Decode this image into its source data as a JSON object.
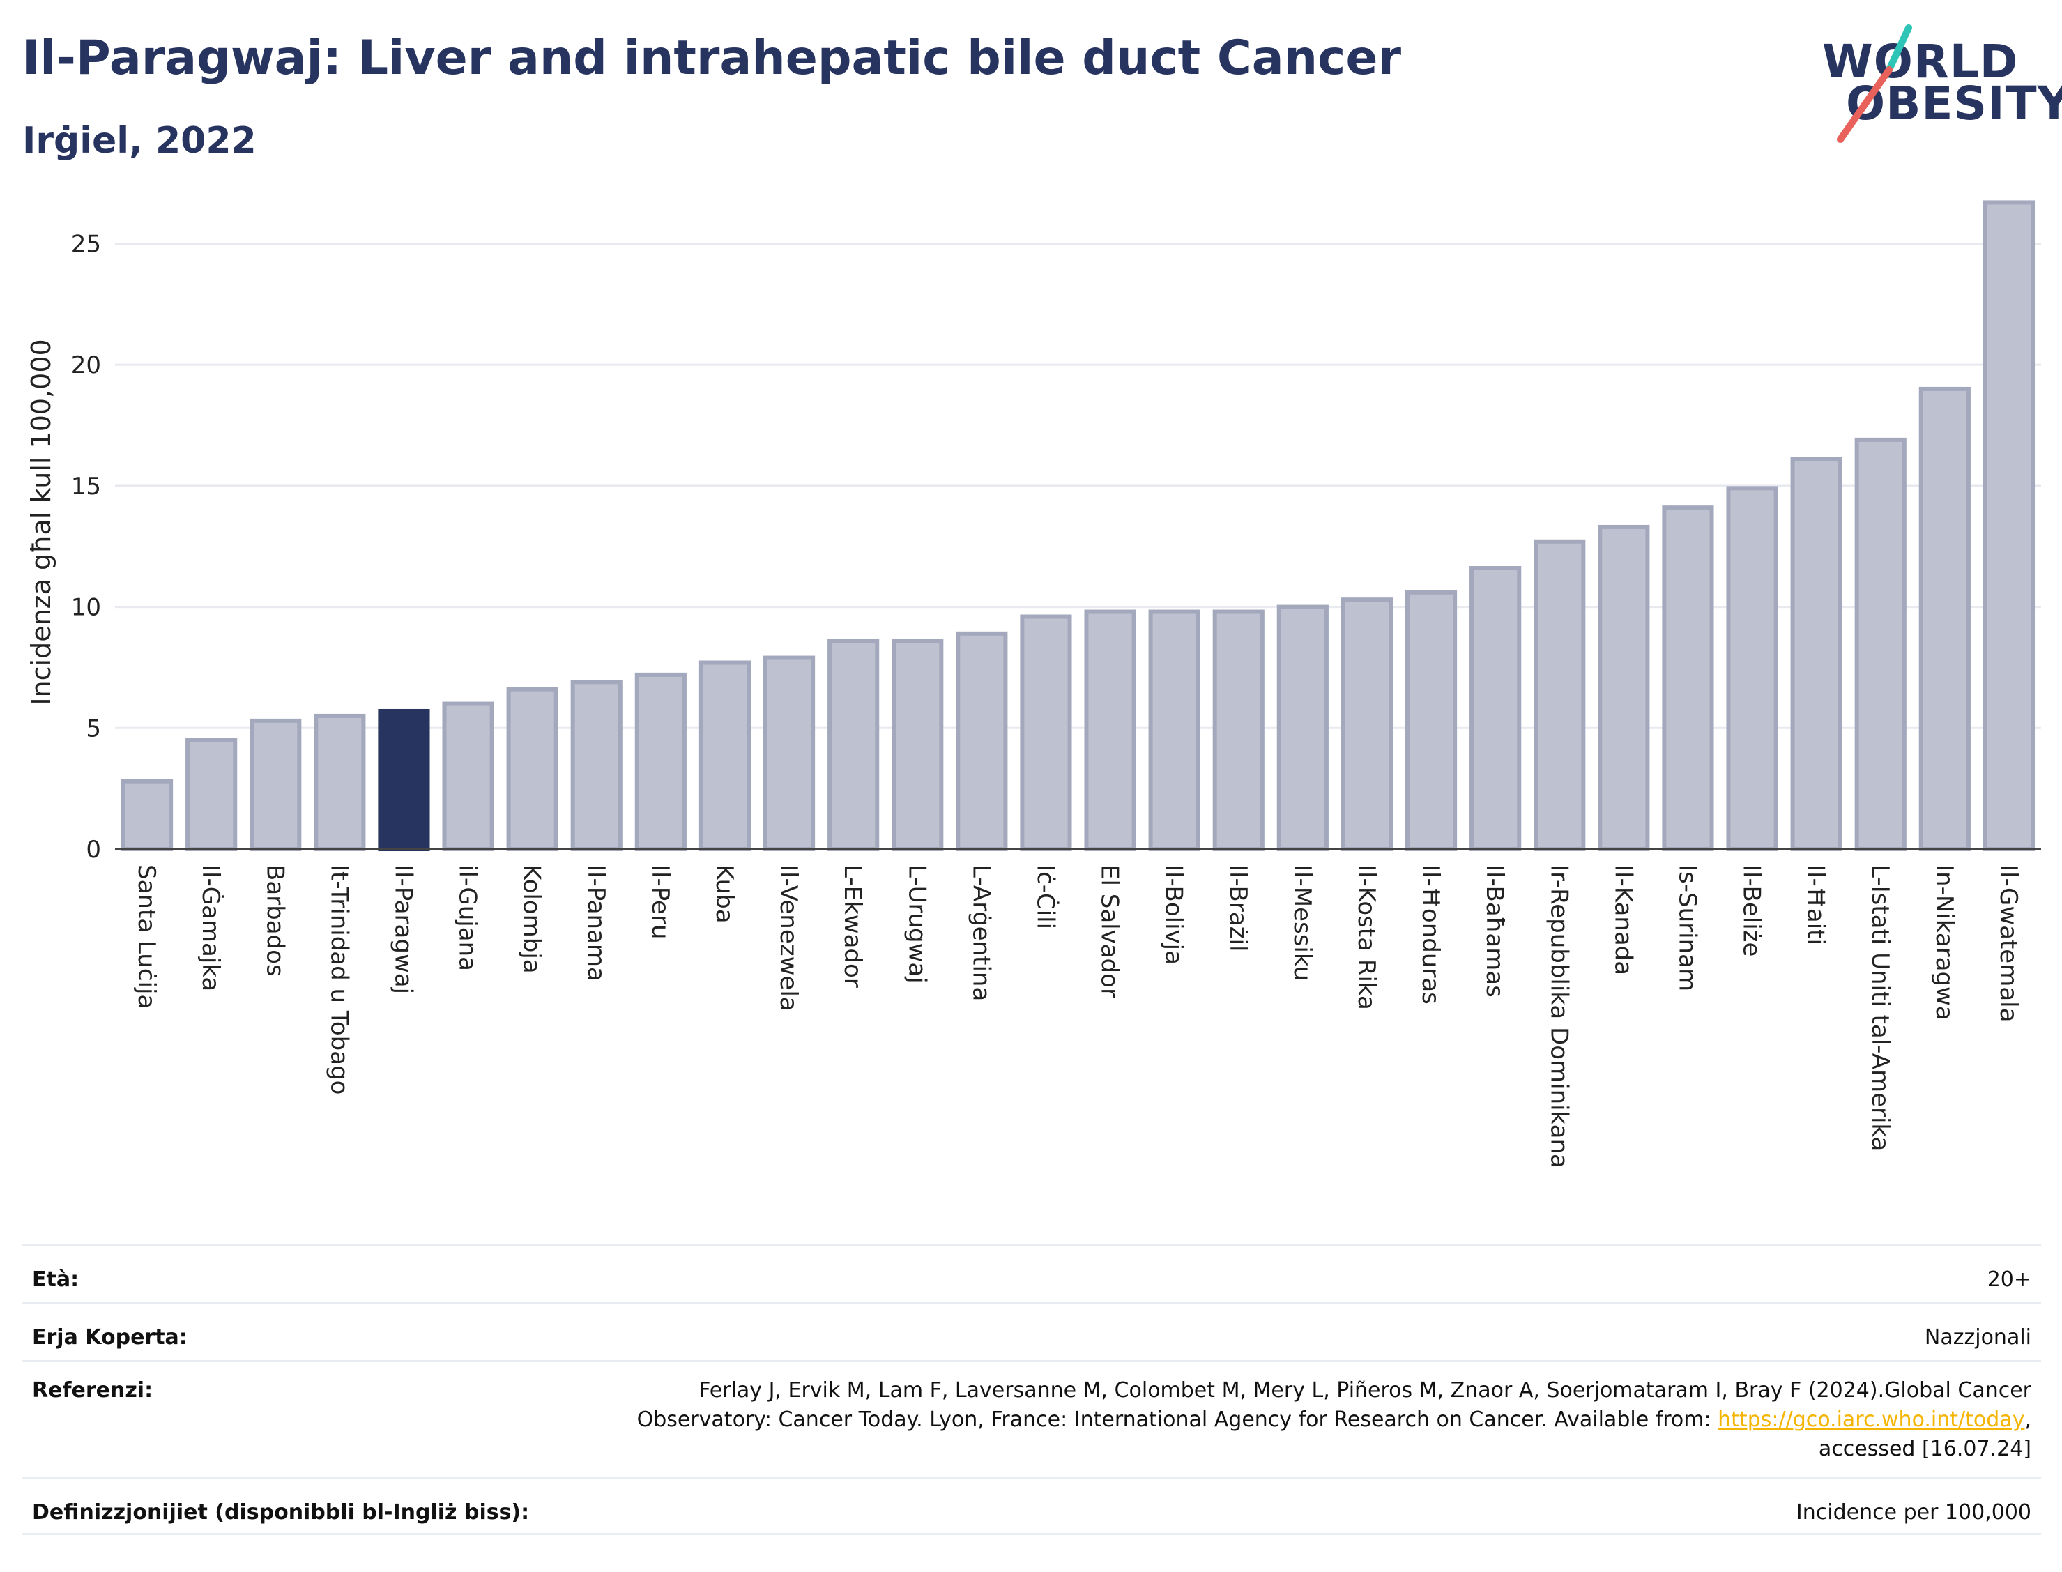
{
  "header": {
    "title": "Il-Paragwaj: Liver and intrahepatic bile duct Cancer",
    "subtitle": "Irġiel, 2022"
  },
  "logo": {
    "line1": "WORLD",
    "line2": "OBESITY",
    "colors": {
      "text": "#283460",
      "slash_top": "#2ec4b6",
      "slash_bottom": "#e8615a"
    }
  },
  "chart_data": {
    "type": "bar",
    "ylabel": "Incidenza għal kull 100,000",
    "ylim": [
      0,
      27
    ],
    "yticks": [
      0,
      5,
      10,
      15,
      20,
      25
    ],
    "grid": true,
    "highlight": "Il-Paragwaj",
    "colors": {
      "bar": "#bec2d0",
      "bar_edge": "#a3a8bd",
      "highlight": "#283460",
      "grid": "#e8eaf0"
    },
    "categories": [
      "Santa Luċija",
      "Il-Ġamajka",
      "Barbados",
      "It-Trinidad u Tobago",
      "Il-Paragwaj",
      "il-Gujana",
      "Kolombja",
      "Il-Panama",
      "Il-Peru",
      "Kuba",
      "Il-Venezwela",
      "L-Ekwador",
      "L-Urugwaj",
      "L-Arġentina",
      "Iċ-Ċili",
      "El Salvador",
      "Il-Bolivja",
      "Il-Brażil",
      "Il-Messiku",
      "Il-Kosta Rika",
      "Il-Ħonduras",
      "Il-Baħamas",
      "Ir-Repubblika Dominikana",
      "Il-Kanada",
      "Is-Surinam",
      "Il-Beliże",
      "Il-Ħaiti",
      "L-Istati Uniti tal-Amerika",
      "In-Nikaragwa",
      "Il-Gwatemala"
    ],
    "values": [
      2.8,
      4.5,
      5.3,
      5.5,
      5.7,
      6.0,
      6.6,
      6.9,
      7.2,
      7.7,
      7.9,
      8.6,
      8.6,
      8.9,
      9.6,
      9.8,
      9.8,
      9.8,
      10.0,
      10.3,
      10.6,
      11.6,
      12.7,
      13.3,
      14.1,
      14.9,
      16.1,
      16.9,
      19.0,
      26.7
    ]
  },
  "meta": {
    "age_label": "Età:",
    "age_value": "20+",
    "area_label": "Erja Koperta:",
    "area_value": "Nazzjonali",
    "ref_label": "Referenzi:",
    "ref_line1": "Ferlay J, Ervik M, Lam F, Laversanne M, Colombet M, Mery L, Piñeros M, Znaor A, Soerjomataram I, Bray F (2024).Global Cancer",
    "ref_line2_pre": "Observatory: Cancer Today. Lyon, France: International Agency for Research on Cancer. Available from: ",
    "ref_link": "https://gco.iarc.who.int/today",
    "ref_line2_post": ",",
    "ref_line3": "accessed [16.07.24]",
    "def_label": "Definizzjonijiet (disponibbli bl-Ingliż biss):",
    "def_value": "Incidence per 100,000"
  }
}
